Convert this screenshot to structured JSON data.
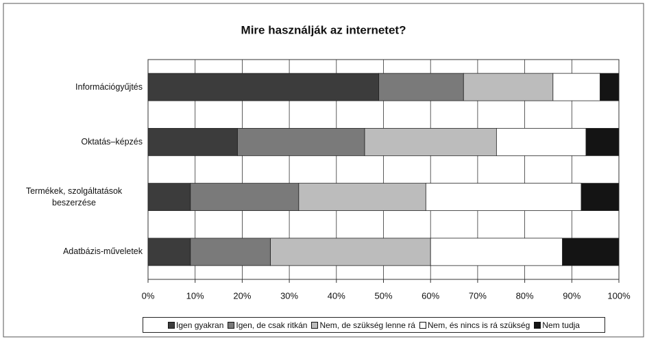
{
  "chart_data": {
    "type": "stacked-bar-horizontal",
    "title": "Mire használják az internetet?",
    "categories": [
      "Információgyűjtés",
      "Oktatás–képzés",
      "Termékek, szolgáltatások beszerzése",
      "Adatbázis-műveletek"
    ],
    "series": [
      {
        "name": "Igen gyakran",
        "color": "#3c3c3c",
        "values": [
          49,
          19,
          9,
          9
        ]
      },
      {
        "name": "Igen, de csak ritkán",
        "color": "#7a7a7a",
        "values": [
          18,
          27,
          23,
          17
        ]
      },
      {
        "name": "Nem, de szükség lenne rá",
        "color": "#bcbcbc",
        "values": [
          19,
          28,
          27,
          34
        ]
      },
      {
        "name": "Nem, és nincs is rá szükség",
        "color": "#ffffff",
        "values": [
          10,
          19,
          33,
          28
        ]
      },
      {
        "name": "Nem tudja",
        "color": "#141414",
        "values": [
          4,
          7,
          8,
          12
        ]
      }
    ],
    "xlim": [
      0,
      100
    ],
    "xticks": [
      {
        "value": 0,
        "label": "0%"
      },
      {
        "value": 10,
        "label": "10%"
      },
      {
        "value": 20,
        "label": "20%"
      },
      {
        "value": 30,
        "label": "30%"
      },
      {
        "value": 40,
        "label": "40%"
      },
      {
        "value": 50,
        "label": "50%"
      },
      {
        "value": 60,
        "label": "60%"
      },
      {
        "value": 70,
        "label": "70%"
      },
      {
        "value": 80,
        "label": "80%"
      },
      {
        "value": 90,
        "label": "90%"
      },
      {
        "value": 100,
        "label": "100%"
      }
    ],
    "grid": true,
    "legend": "bottom"
  }
}
